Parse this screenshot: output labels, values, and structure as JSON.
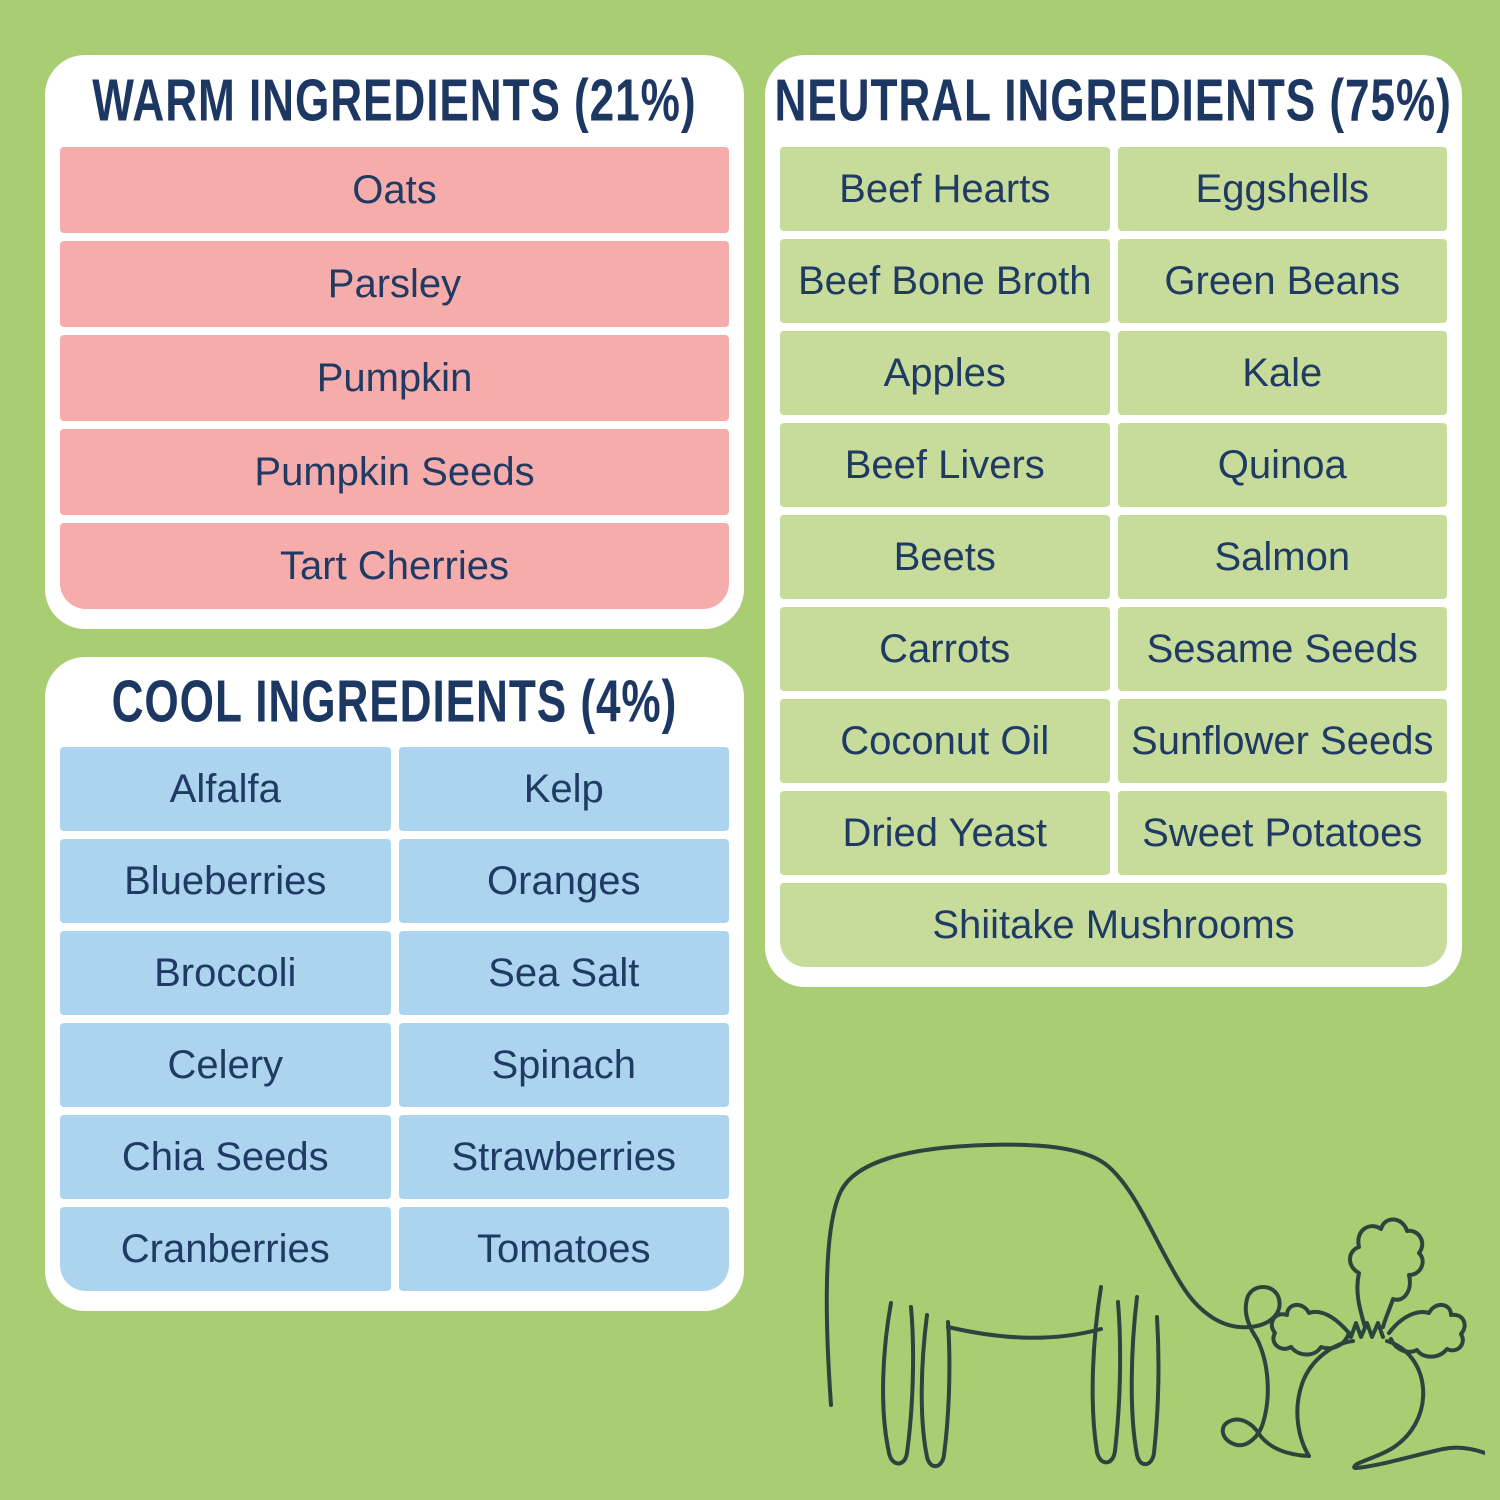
{
  "colors": {
    "background": "#A9CD72",
    "card_background": "#FFFFFF",
    "warm_tile": "#F5ACAA",
    "cool_tile": "#ACD4EE",
    "neutral_tile": "#C7DB9B",
    "item_text": "#1F3A63",
    "heading_text": "#1D3763",
    "line_art_stroke": "#2A443E"
  },
  "cards": {
    "warm": {
      "title": "WARM INGREDIENTS (21%)",
      "items": [
        "Oats",
        "Parsley",
        "Pumpkin",
        "Pumpkin Seeds",
        "Tart Cherries"
      ]
    },
    "cool": {
      "title": "COOL INGREDIENTS (4%)",
      "items": [
        "Alfalfa",
        "Kelp",
        "Blueberries",
        "Oranges",
        "Broccoli",
        "Sea Salt",
        "Celery",
        "Spinach",
        "Chia Seeds",
        "Strawberries",
        "Cranberries",
        "Tomatoes"
      ]
    },
    "neutral": {
      "title": "NEUTRAL INGREDIENTS (75%)",
      "items": [
        "Beef Hearts",
        "Eggshells",
        "Beef Bone Broth",
        "Green Beans",
        "Apples",
        "Kale",
        "Beef Livers",
        "Quinoa",
        "Beets",
        "Salmon",
        "Carrots",
        "Sesame Seeds",
        "Coconut Oil",
        "Sunflower Seeds",
        "Dried Yeast",
        "Sweet Potatoes"
      ],
      "full_width_item": "Shiitake Mushrooms"
    }
  },
  "illustration": {
    "name": "one-line-cow-grazing-with-beet"
  }
}
